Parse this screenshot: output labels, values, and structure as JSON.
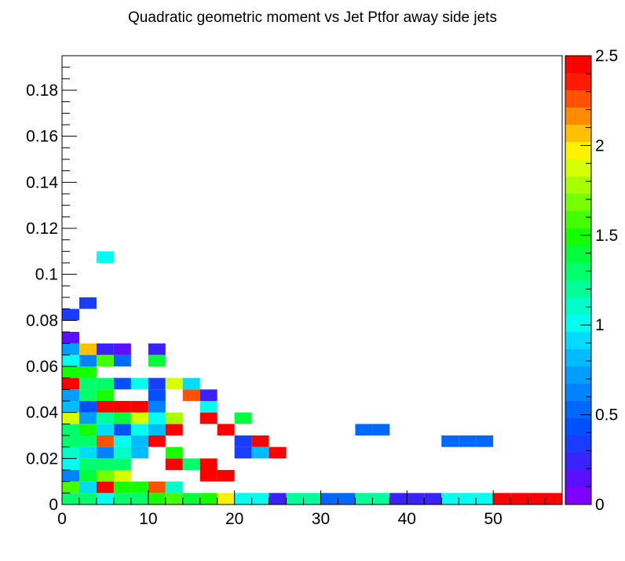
{
  "chart_data": {
    "type": "heatmap",
    "title": "Quadratic geometric moment vs Jet Ptfor away side jets",
    "xlabel": "",
    "ylabel": "",
    "xlim": [
      0,
      58
    ],
    "ylim": [
      0,
      0.195
    ],
    "zlim": [
      0,
      2.5
    ],
    "x_bin_width": 2,
    "y_bin_width": 0.005,
    "x_ticks": [
      {
        "v": 0,
        "label": "0"
      },
      {
        "v": 10,
        "label": "10"
      },
      {
        "v": 20,
        "label": "20"
      },
      {
        "v": 30,
        "label": "30"
      },
      {
        "v": 40,
        "label": "40"
      },
      {
        "v": 50,
        "label": "50"
      }
    ],
    "y_ticks": [
      {
        "v": 0,
        "label": "0"
      },
      {
        "v": 0.02,
        "label": "0.02"
      },
      {
        "v": 0.04,
        "label": "0.04"
      },
      {
        "v": 0.06,
        "label": "0.06"
      },
      {
        "v": 0.08,
        "label": "0.08"
      },
      {
        "v": 0.1,
        "label": "0.1"
      },
      {
        "v": 0.12,
        "label": "0.12"
      },
      {
        "v": 0.14,
        "label": "0.14"
      },
      {
        "v": 0.16,
        "label": "0.16"
      },
      {
        "v": 0.18,
        "label": "0.18"
      }
    ],
    "z_ticks": [
      {
        "v": 0,
        "label": "0"
      },
      {
        "v": 0.5,
        "label": "0.5"
      },
      {
        "v": 1,
        "label": "1"
      },
      {
        "v": 1.5,
        "label": "1.5"
      },
      {
        "v": 2,
        "label": "2"
      },
      {
        "v": 2.5,
        "label": "2.5"
      }
    ],
    "palette": [
      "#7f00ff",
      "#5a0fff",
      "#3a22ff",
      "#1a3cff",
      "#0050ff",
      "#0068ff",
      "#0082ff",
      "#009eff",
      "#00bcff",
      "#00dcff",
      "#00fff0",
      "#00ffc8",
      "#00ff99",
      "#00ff6a",
      "#00ff3a",
      "#15ff00",
      "#44ff00",
      "#76ff00",
      "#a8ff00",
      "#d6ff00",
      "#fff200",
      "#ffc000",
      "#ff8c00",
      "#ff5200",
      "#ff1a00",
      "#ff0000"
    ],
    "cells": [
      [
        0,
        0,
        1.25
      ],
      [
        2,
        0,
        1.25
      ],
      [
        4,
        0,
        1.05
      ],
      [
        6,
        0,
        1.25
      ],
      [
        8,
        0,
        1.25
      ],
      [
        10,
        0,
        1.45
      ],
      [
        12,
        0,
        1.55
      ],
      [
        14,
        0,
        1.4
      ],
      [
        16,
        0,
        1.45
      ],
      [
        18,
        0,
        2.0
      ],
      [
        20,
        0,
        1.05
      ],
      [
        22,
        0,
        1.05
      ],
      [
        24,
        0,
        0.2
      ],
      [
        26,
        0,
        1.2
      ],
      [
        28,
        0,
        1.2
      ],
      [
        30,
        0,
        0.55
      ],
      [
        32,
        0,
        0.55
      ],
      [
        34,
        0,
        1.2
      ],
      [
        36,
        0,
        1.2
      ],
      [
        38,
        0,
        0.25
      ],
      [
        40,
        0,
        0.25
      ],
      [
        42,
        0,
        0.25
      ],
      [
        44,
        0,
        1.0
      ],
      [
        46,
        0,
        1.0
      ],
      [
        48,
        0,
        1.0
      ],
      [
        50,
        0,
        2.5
      ],
      [
        52,
        0,
        2.5
      ],
      [
        54,
        0,
        2.5
      ],
      [
        56,
        0,
        2.5
      ],
      [
        0,
        0.005,
        1.55
      ],
      [
        2,
        0.005,
        0.9
      ],
      [
        4,
        0.005,
        2.5
      ],
      [
        6,
        0.005,
        1.45
      ],
      [
        8,
        0.005,
        1.45
      ],
      [
        10,
        0.005,
        2.3
      ],
      [
        12,
        0.005,
        1.1
      ],
      [
        0,
        0.01,
        0.65
      ],
      [
        2,
        0.01,
        1.4
      ],
      [
        4,
        0.01,
        1.7
      ],
      [
        6,
        0.01,
        1.9
      ],
      [
        16,
        0.01,
        2.5
      ],
      [
        18,
        0.01,
        2.5
      ],
      [
        0,
        0.015,
        1.05
      ],
      [
        2,
        0.015,
        1.3
      ],
      [
        4,
        0.015,
        1.3
      ],
      [
        6,
        0.015,
        1.3
      ],
      [
        12,
        0.015,
        2.5
      ],
      [
        14,
        0.015,
        1.25
      ],
      [
        16,
        0.015,
        2.5
      ],
      [
        0,
        0.02,
        1.15
      ],
      [
        2,
        0.02,
        0.95
      ],
      [
        4,
        0.02,
        0.65
      ],
      [
        6,
        0.02,
        1.15
      ],
      [
        8,
        0.02,
        0.85
      ],
      [
        12,
        0.02,
        1.45
      ],
      [
        20,
        0.02,
        0.35
      ],
      [
        22,
        0.02,
        0.8
      ],
      [
        24,
        0.02,
        2.5
      ],
      [
        0,
        0.025,
        1.25
      ],
      [
        2,
        0.025,
        1.25
      ],
      [
        4,
        0.025,
        2.3
      ],
      [
        6,
        0.025,
        1.05
      ],
      [
        8,
        0.025,
        0.85
      ],
      [
        10,
        0.025,
        2.5
      ],
      [
        20,
        0.025,
        0.35
      ],
      [
        22,
        0.025,
        2.5
      ],
      [
        44,
        0.025,
        0.5
      ],
      [
        46,
        0.025,
        0.5
      ],
      [
        48,
        0.025,
        0.5
      ],
      [
        0,
        0.03,
        1.25
      ],
      [
        2,
        0.03,
        1.45
      ],
      [
        4,
        0.03,
        0.9
      ],
      [
        6,
        0.03,
        0.4
      ],
      [
        8,
        0.03,
        1.05
      ],
      [
        10,
        0.03,
        0.85
      ],
      [
        12,
        0.03,
        2.5
      ],
      [
        18,
        0.03,
        2.5
      ],
      [
        34,
        0.03,
        0.5
      ],
      [
        36,
        0.03,
        0.5
      ],
      [
        0,
        0.035,
        1.85
      ],
      [
        2,
        0.035,
        0.75
      ],
      [
        4,
        0.035,
        1.2
      ],
      [
        6,
        0.035,
        1.4
      ],
      [
        8,
        0.035,
        1.9
      ],
      [
        10,
        0.035,
        1.0
      ],
      [
        12,
        0.035,
        1.8
      ],
      [
        16,
        0.035,
        2.5
      ],
      [
        20,
        0.035,
        1.35
      ],
      [
        0,
        0.04,
        0.8
      ],
      [
        2,
        0.04,
        0.45
      ],
      [
        4,
        0.04,
        2.5
      ],
      [
        6,
        0.04,
        2.5
      ],
      [
        8,
        0.04,
        2.5
      ],
      [
        10,
        0.04,
        0.65
      ],
      [
        16,
        0.04,
        1.05
      ],
      [
        0,
        0.045,
        0.7
      ],
      [
        2,
        0.045,
        1.3
      ],
      [
        4,
        0.045,
        1.45
      ],
      [
        10,
        0.045,
        0.45
      ],
      [
        14,
        0.045,
        2.25
      ],
      [
        16,
        0.045,
        0.25
      ],
      [
        0,
        0.05,
        2.5
      ],
      [
        2,
        0.05,
        1.25
      ],
      [
        4,
        0.05,
        1.25
      ],
      [
        6,
        0.05,
        0.4
      ],
      [
        8,
        0.05,
        1.05
      ],
      [
        10,
        0.05,
        0.35
      ],
      [
        12,
        0.05,
        1.9
      ],
      [
        14,
        0.05,
        0.9
      ],
      [
        0,
        0.055,
        1.45
      ],
      [
        2,
        0.055,
        1.45
      ],
      [
        0,
        0.06,
        1.05
      ],
      [
        2,
        0.06,
        0.6
      ],
      [
        4,
        0.06,
        1.6
      ],
      [
        6,
        0.06,
        0.55
      ],
      [
        10,
        0.06,
        1.4
      ],
      [
        0,
        0.065,
        0.75
      ],
      [
        2,
        0.065,
        2.05
      ],
      [
        4,
        0.065,
        0.25
      ],
      [
        6,
        0.065,
        0.1
      ],
      [
        10,
        0.065,
        0.25
      ],
      [
        0,
        0.07,
        0.15
      ],
      [
        0,
        0.08,
        0.35
      ],
      [
        2,
        0.085,
        0.3
      ],
      [
        4,
        0.105,
        1.05
      ]
    ]
  }
}
